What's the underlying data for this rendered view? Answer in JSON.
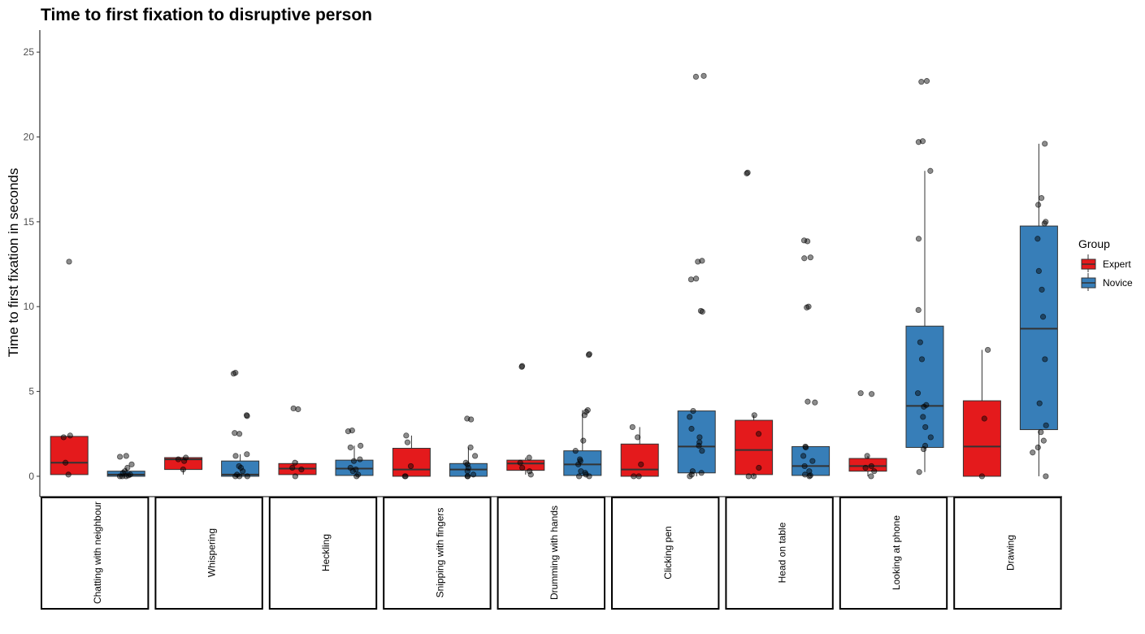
{
  "chart_data": {
    "type": "box",
    "title": "Time to first fixation to disruptive person",
    "xlabel": "",
    "ylabel": "Time to first fixation in seconds",
    "ylim": [
      -1.2,
      26.3
    ],
    "yticks": [
      0,
      5,
      10,
      15,
      20,
      25
    ],
    "grid": false,
    "legend": {
      "title": "Group",
      "position": "right"
    },
    "groups": [
      {
        "name": "Expert",
        "color": "#E41A1C"
      },
      {
        "name": "Novice",
        "color": "#377EB8"
      }
    ],
    "categories": [
      "Chatting with neighbour",
      "Whispering",
      "Heckling",
      "Snipping with fingers",
      "Drumming with hands",
      "Clicking pen",
      "Head on table",
      "Looking at phone",
      "Drawing"
    ],
    "boxes": [
      {
        "category": "Chatting with neighbour",
        "group": "Expert",
        "q1": 0.1,
        "median": 0.8,
        "q3": 2.35,
        "whisker_low": 0.1,
        "whisker_high": 2.4,
        "points": [
          12.65,
          2.4,
          2.3,
          0.8,
          0.1
        ]
      },
      {
        "category": "Chatting with neighbour",
        "group": "Novice",
        "q1": 0.0,
        "median": 0.1,
        "q3": 0.3,
        "whisker_low": 0.0,
        "whisker_high": 0.5,
        "points": [
          1.2,
          1.15,
          0.7,
          0.5,
          0.3,
          0.2,
          0.1,
          0.05,
          0.0,
          0.0,
          0.0
        ]
      },
      {
        "category": "Whispering",
        "group": "Expert",
        "q1": 0.4,
        "median": 1.0,
        "q3": 1.1,
        "whisker_low": 0.1,
        "whisker_high": 1.15,
        "points": [
          1.1,
          1.0,
          0.9,
          0.4
        ]
      },
      {
        "category": "Whispering",
        "group": "Novice",
        "q1": 0.0,
        "median": 0.1,
        "q3": 0.9,
        "whisker_low": 0.0,
        "whisker_high": 1.3,
        "points": [
          6.1,
          6.05,
          3.6,
          3.55,
          2.55,
          2.5,
          1.3,
          1.2,
          0.6,
          0.5,
          0.3,
          0.1,
          0.0,
          0.0,
          0.0
        ]
      },
      {
        "category": "Heckling",
        "group": "Expert",
        "q1": 0.1,
        "median": 0.45,
        "q3": 0.75,
        "whisker_low": 0.0,
        "whisker_high": 0.9,
        "points": [
          4.0,
          3.95,
          0.8,
          0.5,
          0.4,
          0.0
        ]
      },
      {
        "category": "Heckling",
        "group": "Novice",
        "q1": 0.05,
        "median": 0.45,
        "q3": 0.95,
        "whisker_low": 0.0,
        "whisker_high": 1.8,
        "points": [
          2.7,
          2.65,
          1.8,
          1.7,
          1.0,
          0.9,
          0.5,
          0.4,
          0.3,
          0.1,
          0.0
        ]
      },
      {
        "category": "Snipping with fingers",
        "group": "Expert",
        "q1": 0.0,
        "median": 0.4,
        "q3": 1.65,
        "whisker_low": 0.0,
        "whisker_high": 2.4,
        "points": [
          2.4,
          2.0,
          0.6,
          0.0,
          0.0
        ]
      },
      {
        "category": "Snipping with fingers",
        "group": "Novice",
        "q1": 0.0,
        "median": 0.4,
        "q3": 0.75,
        "whisker_low": 0.0,
        "whisker_high": 1.7,
        "points": [
          3.4,
          3.35,
          1.7,
          1.2,
          0.8,
          0.7,
          0.5,
          0.3,
          0.1,
          0.0,
          0.0
        ]
      },
      {
        "category": "Drumming with hands",
        "group": "Expert",
        "q1": 0.35,
        "median": 0.75,
        "q3": 0.95,
        "whisker_low": 0.1,
        "whisker_high": 1.1,
        "points": [
          6.5,
          6.45,
          1.1,
          0.8,
          0.5,
          0.3,
          0.1
        ]
      },
      {
        "category": "Drumming with hands",
        "group": "Novice",
        "q1": 0.05,
        "median": 0.7,
        "q3": 1.5,
        "whisker_low": 0.0,
        "whisker_high": 3.9,
        "points": [
          7.2,
          7.15,
          3.9,
          3.8,
          3.6,
          2.1,
          1.5,
          1.0,
          0.9,
          0.7,
          0.3,
          0.2,
          0.1,
          0.0,
          0.0
        ]
      },
      {
        "category": "Clicking pen",
        "group": "Expert",
        "q1": 0.0,
        "median": 0.4,
        "q3": 1.9,
        "whisker_low": 0.0,
        "whisker_high": 2.9,
        "points": [
          2.9,
          2.3,
          0.7,
          0.0,
          0.0
        ]
      },
      {
        "category": "Clicking pen",
        "group": "Novice",
        "q1": 0.2,
        "median": 1.75,
        "q3": 3.85,
        "whisker_low": 0.0,
        "whisker_high": 3.85,
        "points": [
          23.6,
          23.55,
          12.7,
          12.65,
          11.65,
          11.6,
          9.75,
          9.7,
          3.85,
          3.5,
          2.8,
          2.3,
          2.0,
          1.8,
          1.5,
          0.3,
          0.2,
          0.1,
          0.0
        ]
      },
      {
        "category": "Head on table",
        "group": "Expert",
        "q1": 0.1,
        "median": 1.55,
        "q3": 3.3,
        "whisker_low": 0.0,
        "whisker_high": 3.6,
        "points": [
          17.9,
          17.85,
          3.6,
          2.5,
          0.5,
          0.0,
          0.0
        ]
      },
      {
        "category": "Head on table",
        "group": "Novice",
        "q1": 0.05,
        "median": 0.6,
        "q3": 1.75,
        "whisker_low": 0.0,
        "whisker_high": 1.75,
        "points": [
          13.9,
          13.85,
          12.9,
          12.85,
          10.0,
          9.95,
          4.4,
          4.35,
          1.75,
          1.7,
          1.2,
          0.9,
          0.6,
          0.3,
          0.1,
          0.05,
          0.0
        ]
      },
      {
        "category": "Looking at phone",
        "group": "Expert",
        "q1": 0.3,
        "median": 0.6,
        "q3": 1.05,
        "whisker_low": 0.0,
        "whisker_high": 1.2,
        "points": [
          4.9,
          4.85,
          1.2,
          0.6,
          0.5,
          0.3,
          0.0
        ]
      },
      {
        "category": "Looking at phone",
        "group": "Novice",
        "q1": 1.7,
        "median": 4.15,
        "q3": 8.85,
        "whisker_low": 0.25,
        "whisker_high": 18.0,
        "points": [
          23.3,
          23.25,
          19.75,
          19.7,
          18.0,
          14.0,
          9.8,
          7.9,
          6.9,
          4.9,
          4.2,
          4.1,
          3.5,
          2.9,
          2.3,
          1.8,
          1.6,
          0.25
        ]
      },
      {
        "category": "Drawing",
        "group": "Expert",
        "q1": 0.0,
        "median": 1.75,
        "q3": 4.45,
        "whisker_low": 0.0,
        "whisker_high": 7.45,
        "points": [
          7.45,
          3.4,
          0.0
        ]
      },
      {
        "category": "Drawing",
        "group": "Novice",
        "q1": 2.75,
        "median": 8.7,
        "q3": 14.75,
        "whisker_low": 0.0,
        "whisker_high": 19.6,
        "points": [
          19.6,
          16.4,
          16.0,
          15.0,
          14.9,
          14.0,
          12.1,
          11.0,
          9.4,
          6.9,
          4.3,
          3.0,
          2.6,
          2.1,
          1.7,
          1.4,
          0.0
        ]
      }
    ]
  }
}
